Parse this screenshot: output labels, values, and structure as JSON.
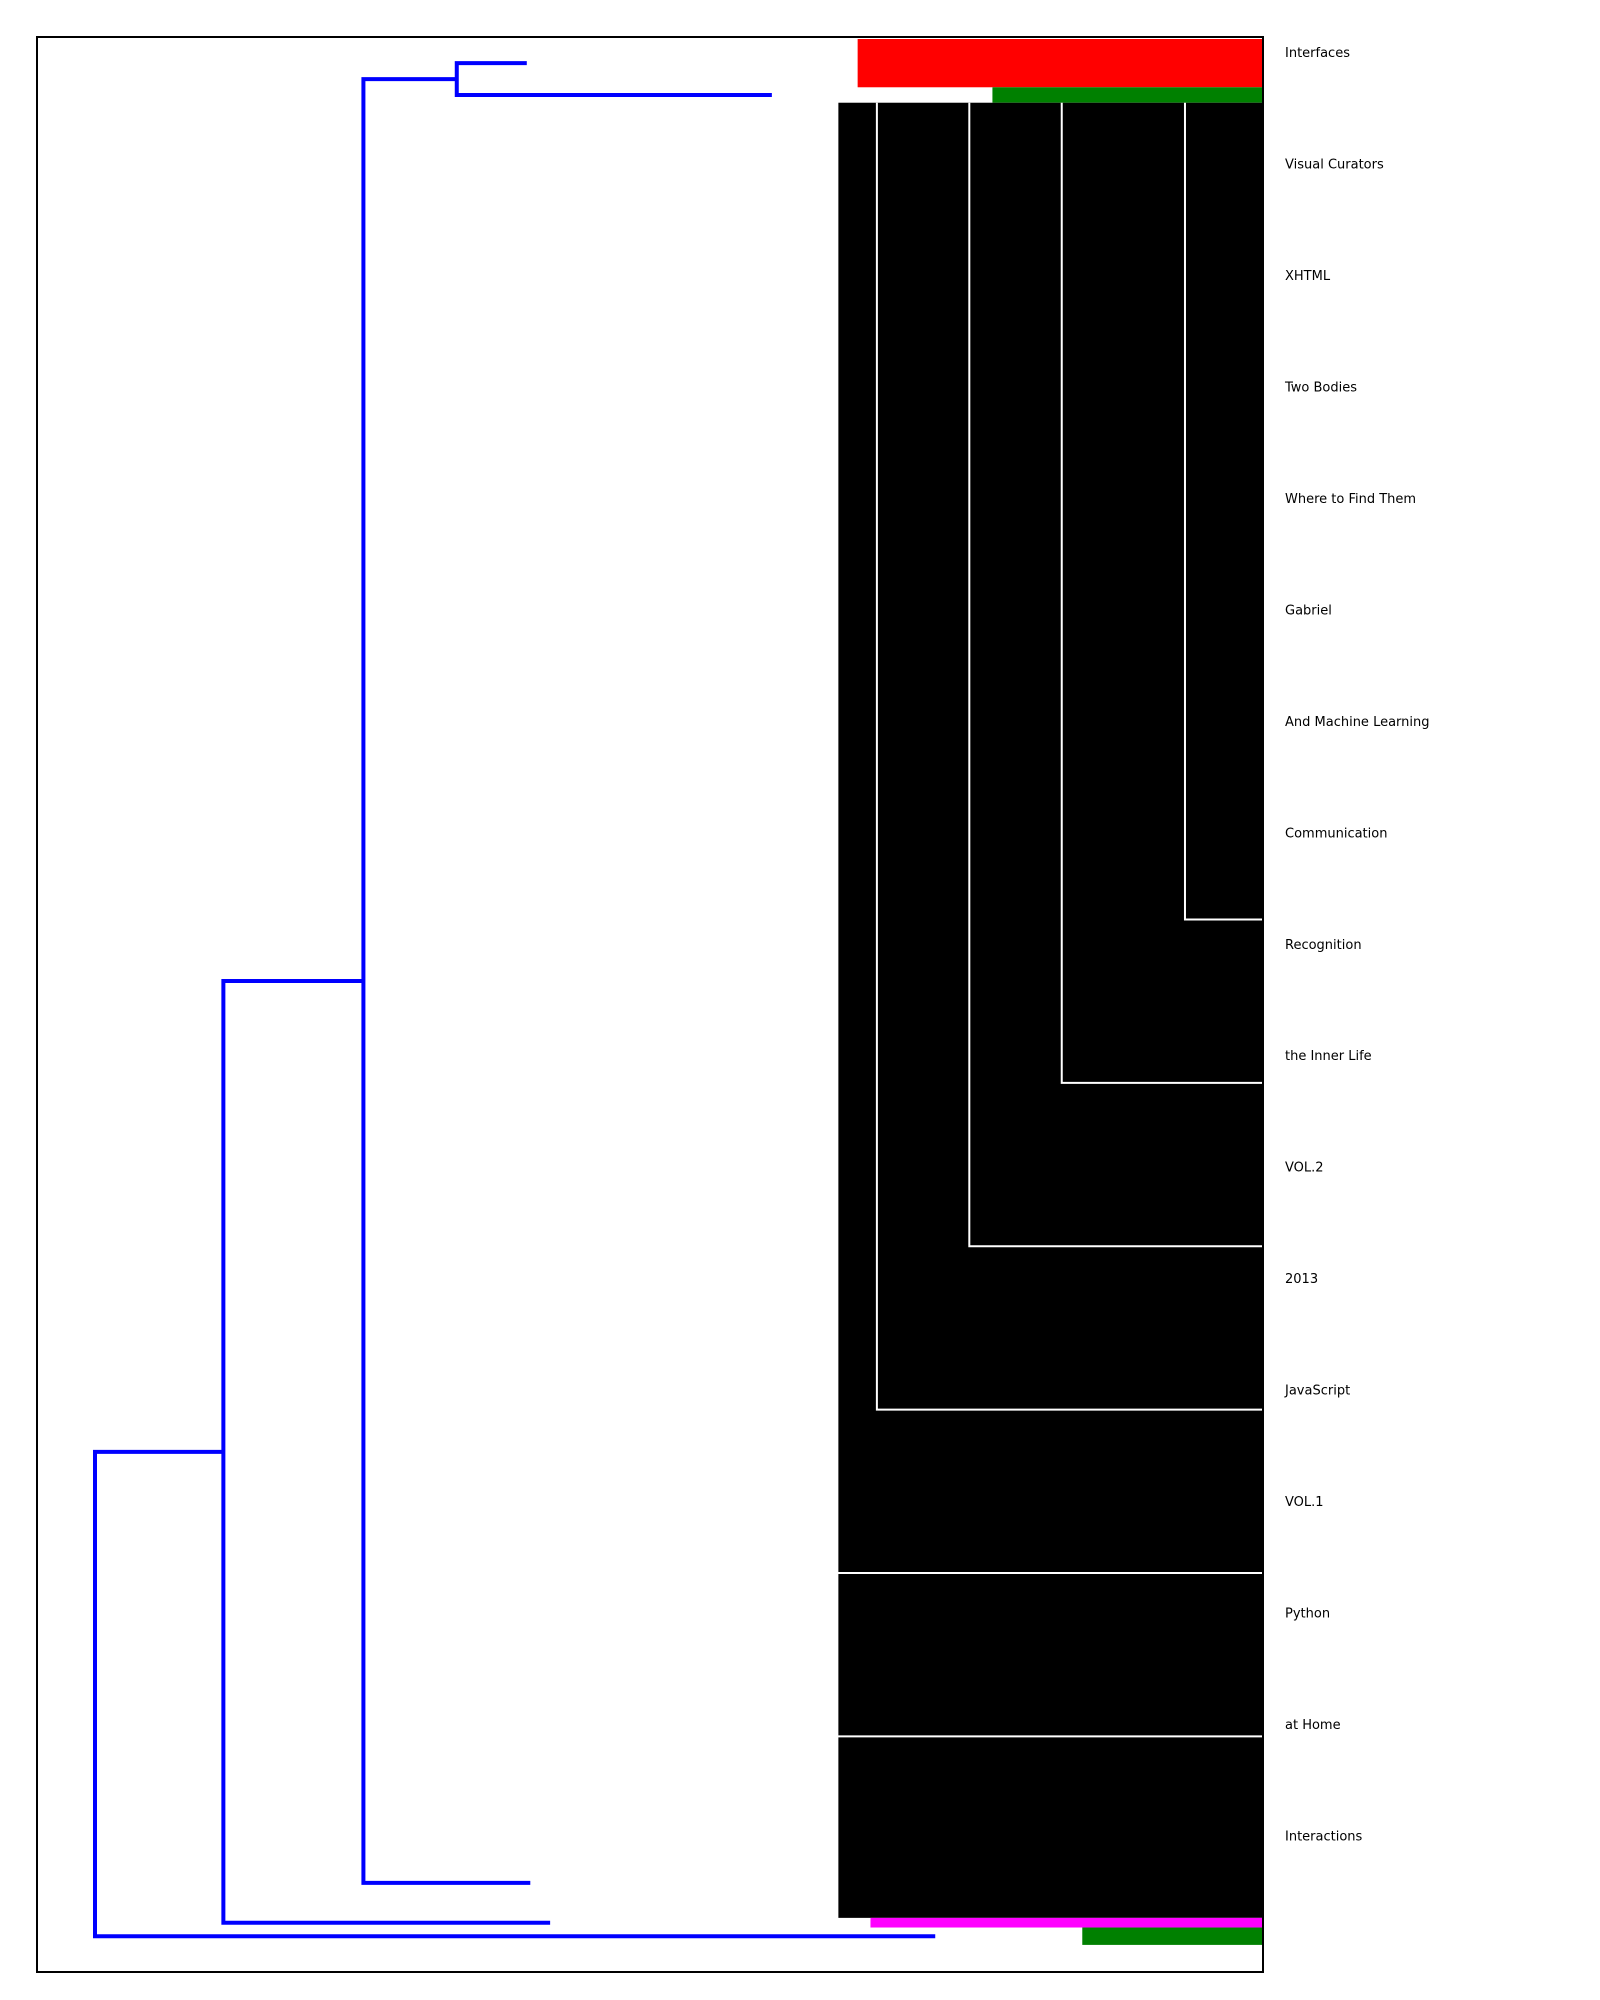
{
  "chart_data": {
    "type": "dendrogram",
    "orientation": "left",
    "grid": false,
    "legend": "none",
    "colors": {
      "link_above_threshold": "#0000ff",
      "clusters": [
        "#ff0000",
        "#008000",
        "#000000",
        "#ff00ff",
        "#008000"
      ],
      "frame": "#000000"
    },
    "root_merges": [
      {
        "clusters": [
          "magenta-cluster",
          "green-cluster-bottom"
        ],
        "height": 1.0
      },
      {
        "clusters": [
          "black-cluster",
          "magenta-cluster"
        ],
        "height": 0.89
      },
      {
        "clusters": [
          "black-cluster",
          "red-cluster+green-cluster-top"
        ],
        "height": 0.77
      },
      {
        "clusters": [
          "red-cluster",
          "green-cluster-top"
        ],
        "height": 0.69
      }
    ],
    "clusters": [
      {
        "color": "red",
        "leaf_share": 0.025,
        "internal_height": 0.63
      },
      {
        "color": "green",
        "leaf_share": 0.008,
        "internal_height": 0.42
      },
      {
        "color": "black",
        "leaf_share": 0.94,
        "internal_height": 0.66
      },
      {
        "color": "magenta",
        "leaf_share": 0.005,
        "internal_height": 0.61
      },
      {
        "color": "green",
        "leaf_share": 0.009,
        "internal_height": 0.28
      }
    ],
    "leaf_labels": [
      "Interfaces",
      "Visual Curators",
      "XHTML",
      "Two Bodies",
      "Where to Find Them",
      "Gabriel",
      "And Machine Learning",
      "Communication",
      "Recognition",
      "the Inner Life",
      "VOL.2",
      "2013",
      "JavaScript",
      "VOL.1",
      "Python",
      "at Home",
      "Interactions"
    ]
  }
}
